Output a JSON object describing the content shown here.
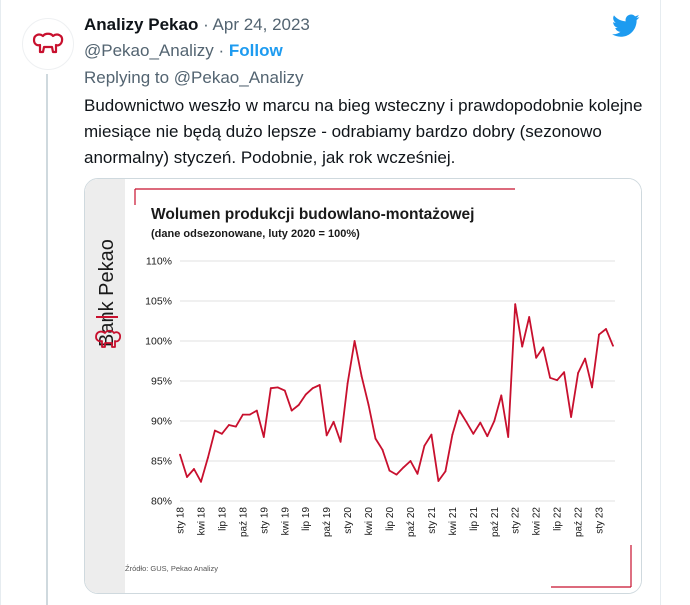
{
  "tweet": {
    "author_name": "Analizy Pekao",
    "date": "Apr 24, 2023",
    "handle": "@Pekao_Analizy",
    "follow_label": "Follow",
    "reply_prefix": "Replying to",
    "reply_handle": "@Pekao_Analizy",
    "text": "Budownictwo weszło w marcu na bieg wsteczny i prawdopodobnie kolejne miesiące nie będą dużo lepsze - odrabiamy bardzo dobry (sezonowo anormalny) styczeń. Podobnie, jak rok wcześniej.",
    "sep": "·",
    "avatar_icon": "bison-logo-icon",
    "brand_icon": "twitter-bird-icon"
  },
  "colors": {
    "brand_red": "#c8102e",
    "twitter_blue": "#1d9bf0"
  },
  "media": {
    "brand_text": "Bank Pekao",
    "source": "Źródło: GUS, Pekao Analizy"
  },
  "chart_data": {
    "type": "line",
    "title": "Wolumen produkcji budowlano-montażowej",
    "subtitle": "(dane odsezonowane, luty 2020 = 100%)",
    "ylim": [
      80,
      110
    ],
    "yticks": [
      "80%",
      "85%",
      "90%",
      "95%",
      "100%",
      "105%",
      "110%"
    ],
    "xtick_labels": [
      "sty 18",
      "kwi 18",
      "lip 18",
      "paź 18",
      "sty 19",
      "kwi 19",
      "lip 19",
      "paź 19",
      "sty 20",
      "kwi 20",
      "lip 20",
      "paź 20",
      "sty 21",
      "kwi 21",
      "lip 21",
      "paź 21",
      "sty 22",
      "kwi 22",
      "lip 22",
      "paź 22",
      "sty 23"
    ],
    "grid": true,
    "color": "#c8102e",
    "values": [
      85.8,
      83.0,
      84.0,
      82.4,
      85.4,
      88.8,
      88.4,
      89.5,
      89.3,
      90.8,
      90.8,
      91.3,
      88.0,
      94.1,
      94.2,
      93.8,
      91.3,
      92.0,
      93.3,
      94.1,
      94.5,
      88.2,
      89.9,
      87.4,
      94.7,
      100.0,
      95.6,
      92.0,
      87.8,
      86.4,
      83.8,
      83.3,
      84.2,
      85.0,
      83.4,
      86.9,
      88.3,
      82.5,
      83.7,
      88.3,
      91.3,
      89.9,
      88.4,
      89.8,
      88.1,
      90.0,
      93.2,
      88.0,
      104.6,
      99.3,
      103.0,
      97.9,
      99.2,
      95.4,
      95.1,
      96.1,
      90.5,
      96.0,
      97.8,
      94.2,
      100.8,
      101.5,
      99.4
    ]
  }
}
